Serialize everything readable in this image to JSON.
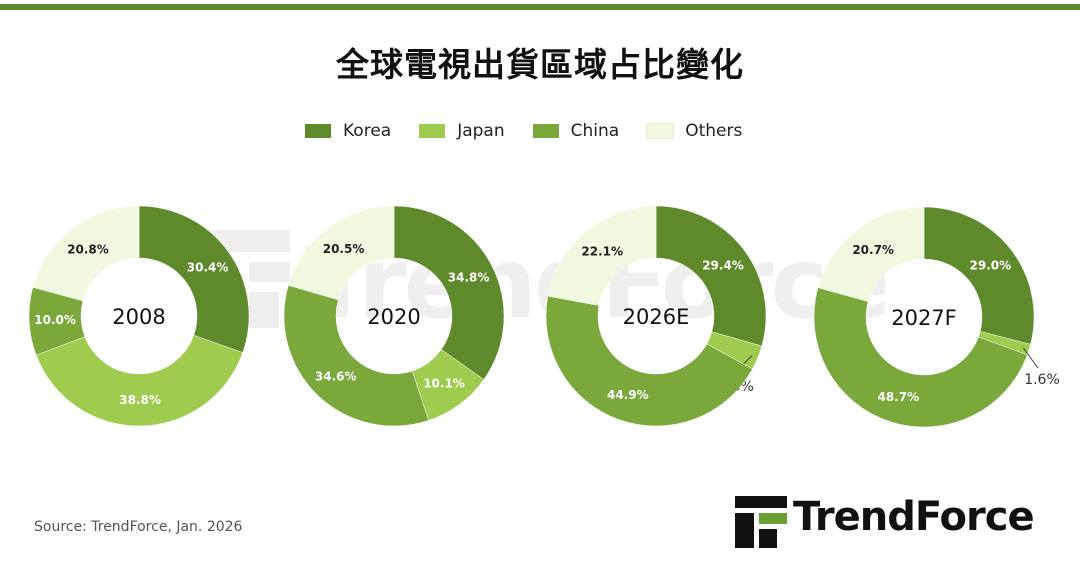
{
  "title": "全球電視出貨區域占比變化",
  "legend": [
    {
      "label": "Korea",
      "color": "#5e8a2b"
    },
    {
      "label": "Japan",
      "color": "#9fcc4e"
    },
    {
      "label": "China",
      "color": "#7aa83a"
    },
    {
      "label": "Others",
      "color": "#f0f8df"
    }
  ],
  "source": "Source: TrendForce, Jan. 2026",
  "logo": {
    "text": "TrendForce"
  },
  "chart_data": [
    {
      "type": "pie",
      "subtype": "donut",
      "center_label": "2008",
      "slices": [
        {
          "name": "Korea",
          "value": 30.4,
          "label": "30.4%"
        },
        {
          "name": "Japan",
          "value": 38.8,
          "label": "38.8%"
        },
        {
          "name": "China",
          "value": 10.0,
          "label": "10.0%"
        },
        {
          "name": "Others",
          "value": 20.8,
          "label": "20.8%"
        }
      ]
    },
    {
      "type": "pie",
      "subtype": "donut",
      "center_label": "2020",
      "slices": [
        {
          "name": "Korea",
          "value": 34.8,
          "label": "34.8%"
        },
        {
          "name": "Japan",
          "value": 10.1,
          "label": "10.1%"
        },
        {
          "name": "China",
          "value": 34.6,
          "label": "34.6%"
        },
        {
          "name": "Others",
          "value": 20.5,
          "label": "20.5%"
        }
      ]
    },
    {
      "type": "pie",
      "subtype": "donut",
      "center_label": "2026E",
      "slices": [
        {
          "name": "Korea",
          "value": 29.4,
          "label": "29.4%"
        },
        {
          "name": "Japan",
          "value": 3.6,
          "label": "3.6%"
        },
        {
          "name": "China",
          "value": 44.9,
          "label": "44.9%"
        },
        {
          "name": "Others",
          "value": 22.1,
          "label": "22.1%"
        }
      ]
    },
    {
      "type": "pie",
      "subtype": "donut",
      "center_label": "2027F",
      "slices": [
        {
          "name": "Korea",
          "value": 29.0,
          "label": "29.0%"
        },
        {
          "name": "Japan",
          "value": 1.6,
          "label": "1.6%"
        },
        {
          "name": "China",
          "value": 48.7,
          "label": "48.7%"
        },
        {
          "name": "Others",
          "value": 20.7,
          "label": "20.7%"
        }
      ]
    }
  ]
}
